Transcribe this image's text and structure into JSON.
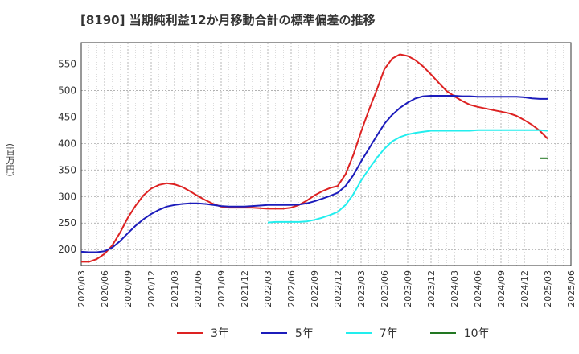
{
  "title": "[8190]  当期純利益12か月移動合計の標準偏差の推移",
  "unit_label": "(百万円)",
  "chart_data": {
    "type": "line",
    "title": "[8190]  当期純利益12か月移動合計の標準偏差の推移",
    "ylabel": "(百万円)",
    "ylim": [
      170,
      590
    ],
    "yticks": [
      200,
      250,
      300,
      350,
      400,
      450,
      500,
      550
    ],
    "xticks": [
      "2020/03",
      "2020/06",
      "2020/09",
      "2020/12",
      "2021/03",
      "2021/06",
      "2021/09",
      "2021/12",
      "2022/03",
      "2022/06",
      "2022/09",
      "2022/12",
      "2023/03",
      "2023/06",
      "2023/09",
      "2023/12",
      "2024/03",
      "2024/06",
      "2024/09",
      "2024/12",
      "2025/03",
      "2025/06"
    ],
    "grid": true,
    "legend_position": "bottom",
    "series": [
      {
        "name": "3年",
        "color": "#dd2222",
        "x": [
          "2020/03",
          "2020/04",
          "2020/05",
          "2020/06",
          "2020/07",
          "2020/08",
          "2020/09",
          "2020/10",
          "2020/11",
          "2020/12",
          "2021/01",
          "2021/02",
          "2021/03",
          "2021/04",
          "2021/05",
          "2021/06",
          "2021/07",
          "2021/08",
          "2021/09",
          "2021/10",
          "2021/11",
          "2021/12",
          "2022/01",
          "2022/02",
          "2022/03",
          "2022/04",
          "2022/05",
          "2022/06",
          "2022/07",
          "2022/08",
          "2022/09",
          "2022/10",
          "2022/11",
          "2022/12",
          "2023/01",
          "2023/02",
          "2023/03",
          "2023/04",
          "2023/05",
          "2023/06",
          "2023/07",
          "2023/08",
          "2023/09",
          "2023/10",
          "2023/11",
          "2023/12",
          "2024/01",
          "2024/02",
          "2024/03",
          "2024/04",
          "2024/05",
          "2024/06",
          "2024/07",
          "2024/08",
          "2024/09",
          "2024/10",
          "2024/11",
          "2024/12",
          "2025/01",
          "2025/02",
          "2025/03"
        ],
        "values": [
          177,
          177,
          182,
          192,
          208,
          232,
          260,
          283,
          302,
          315,
          322,
          325,
          323,
          318,
          310,
          301,
          293,
          286,
          281,
          279,
          279,
          279,
          279,
          278,
          277,
          277,
          277,
          279,
          284,
          292,
          302,
          310,
          316,
          320,
          342,
          378,
          422,
          463,
          500,
          540,
          560,
          568,
          565,
          557,
          545,
          530,
          514,
          499,
          489,
          480,
          473,
          469,
          466,
          463,
          460,
          457,
          452,
          444,
          435,
          424,
          409
        ]
      },
      {
        "name": "5年",
        "color": "#1c1cbb",
        "x": [
          "2020/03",
          "2020/04",
          "2020/05",
          "2020/06",
          "2020/07",
          "2020/08",
          "2020/09",
          "2020/10",
          "2020/11",
          "2020/12",
          "2021/01",
          "2021/02",
          "2021/03",
          "2021/04",
          "2021/05",
          "2021/06",
          "2021/07",
          "2021/08",
          "2021/09",
          "2021/10",
          "2021/11",
          "2021/12",
          "2022/01",
          "2022/02",
          "2022/03",
          "2022/04",
          "2022/05",
          "2022/06",
          "2022/07",
          "2022/08",
          "2022/09",
          "2022/10",
          "2022/11",
          "2022/12",
          "2023/01",
          "2023/02",
          "2023/03",
          "2023/04",
          "2023/05",
          "2023/06",
          "2023/07",
          "2023/08",
          "2023/09",
          "2023/10",
          "2023/11",
          "2023/12",
          "2024/01",
          "2024/02",
          "2024/03",
          "2024/04",
          "2024/05",
          "2024/06",
          "2024/07",
          "2024/08",
          "2024/09",
          "2024/10",
          "2024/11",
          "2024/12",
          "2025/01",
          "2025/02",
          "2025/03"
        ],
        "values": [
          196,
          195,
          195,
          197,
          204,
          216,
          231,
          245,
          257,
          267,
          275,
          281,
          284,
          286,
          287,
          287,
          286,
          284,
          282,
          281,
          281,
          281,
          282,
          283,
          284,
          284,
          284,
          284,
          285,
          287,
          291,
          296,
          301,
          307,
          320,
          340,
          366,
          390,
          414,
          437,
          454,
          467,
          477,
          485,
          489,
          490,
          490,
          490,
          490,
          489,
          489,
          488,
          488,
          488,
          488,
          488,
          488,
          487,
          485,
          484,
          484
        ]
      },
      {
        "name": "7年",
        "color": "#22eeee",
        "x": [
          "2022/03",
          "2022/04",
          "2022/05",
          "2022/06",
          "2022/07",
          "2022/08",
          "2022/09",
          "2022/10",
          "2022/11",
          "2022/12",
          "2023/01",
          "2023/02",
          "2023/03",
          "2023/04",
          "2023/05",
          "2023/06",
          "2023/07",
          "2023/08",
          "2023/09",
          "2023/10",
          "2023/11",
          "2023/12",
          "2024/01",
          "2024/02",
          "2024/03",
          "2024/04",
          "2024/05",
          "2024/06",
          "2024/07",
          "2024/08",
          "2024/09",
          "2024/10",
          "2024/11",
          "2024/12",
          "2025/01",
          "2025/02",
          "2025/03"
        ],
        "values": [
          251,
          252,
          252,
          252,
          252,
          253,
          256,
          260,
          265,
          271,
          284,
          304,
          330,
          352,
          372,
          390,
          404,
          412,
          417,
          420,
          422,
          424,
          424,
          424,
          424,
          424,
          424,
          425,
          425,
          425,
          425,
          425,
          425,
          425,
          425,
          425,
          424
        ]
      },
      {
        "name": "10年",
        "color": "#227722",
        "x": [
          "2025/02",
          "2025/03"
        ],
        "values": [
          372,
          372
        ]
      }
    ]
  }
}
